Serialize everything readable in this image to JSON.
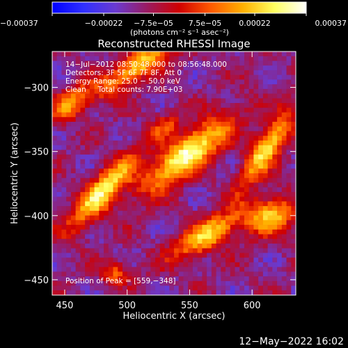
{
  "chart_data": {
    "type": "heatmap",
    "title": "Reconstructed RHESSI Image",
    "xlabel": "Heliocentric X (arcsec)",
    "ylabel": "Heliocentric Y (arcsec)",
    "xlim": [
      440,
      635
    ],
    "ylim": [
      -462,
      -272
    ],
    "x_ticks": [
      {
        "value": 450,
        "label": "450"
      },
      {
        "value": 500,
        "label": "500"
      },
      {
        "value": 550,
        "label": "550"
      },
      {
        "value": 600,
        "label": "600"
      }
    ],
    "y_ticks": [
      {
        "value": -300,
        "label": "−300"
      },
      {
        "value": -350,
        "label": "−350"
      },
      {
        "value": -400,
        "label": "−400"
      },
      {
        "value": -450,
        "label": "−450"
      }
    ],
    "colorbar": {
      "min": -0.00037,
      "max": 0.00037,
      "tick_values": [
        -0.00037,
        -0.00022,
        -7.5e-05,
        7.5e-05,
        0.00022,
        0.00037
      ],
      "tick_labels": [
        "−0.00037",
        "−0.00022",
        "−7.5e−05",
        "7.5e−05",
        "0.00022",
        "0.00037"
      ],
      "units": "(photons cm⁻² s⁻¹ asec⁻²)",
      "stops": [
        "#0000ff",
        "#3030ff",
        "#6a3ad0",
        "#9a1a60",
        "#d00000",
        "#ff5a00",
        "#ffb000",
        "#ffff60",
        "#ffffff"
      ]
    },
    "info_lines": [
      "14−Jul−2012 08:50:48.000 to 08:56:48.000",
      "Detectors: 3F 5F 6F 7F 8F, Att 0",
      "Energy Range: 25.0 − 50.0 keV",
      "Clean     Total counts: 7.90E+03"
    ],
    "peak_label": "Position of Peak = [559,−348]",
    "peak": {
      "x": 559,
      "y": -348
    },
    "grid_cells": 52,
    "sources": [
      {
        "x": 548,
        "y": -352,
        "sx": 30,
        "sy": 9,
        "angle": 38,
        "amp": 1.0
      },
      {
        "x": 612,
        "y": -347,
        "sx": 24,
        "sy": 7,
        "angle": 55,
        "amp": 0.85
      },
      {
        "x": 480,
        "y": -382,
        "sx": 26,
        "sy": 8,
        "angle": 48,
        "amp": 0.85
      },
      {
        "x": 565,
        "y": -415,
        "sx": 22,
        "sy": 8,
        "angle": 30,
        "amp": 0.75
      },
      {
        "x": 510,
        "y": -282,
        "sx": 30,
        "sy": 7,
        "angle": 35,
        "amp": 0.75
      },
      {
        "x": 455,
        "y": -312,
        "sx": 14,
        "sy": 7,
        "angle": 40,
        "amp": 0.55
      },
      {
        "x": 615,
        "y": -400,
        "sx": 14,
        "sy": 10,
        "angle": 20,
        "amp": 0.7
      },
      {
        "x": 490,
        "y": -445,
        "sx": 8,
        "sy": 6,
        "angle": 0,
        "amp": 0.45
      },
      {
        "x": 530,
        "y": -330,
        "sx": 10,
        "sy": 6,
        "angle": 40,
        "amp": 0.4
      }
    ],
    "date_stamp": "12−May−2022 16:02"
  }
}
